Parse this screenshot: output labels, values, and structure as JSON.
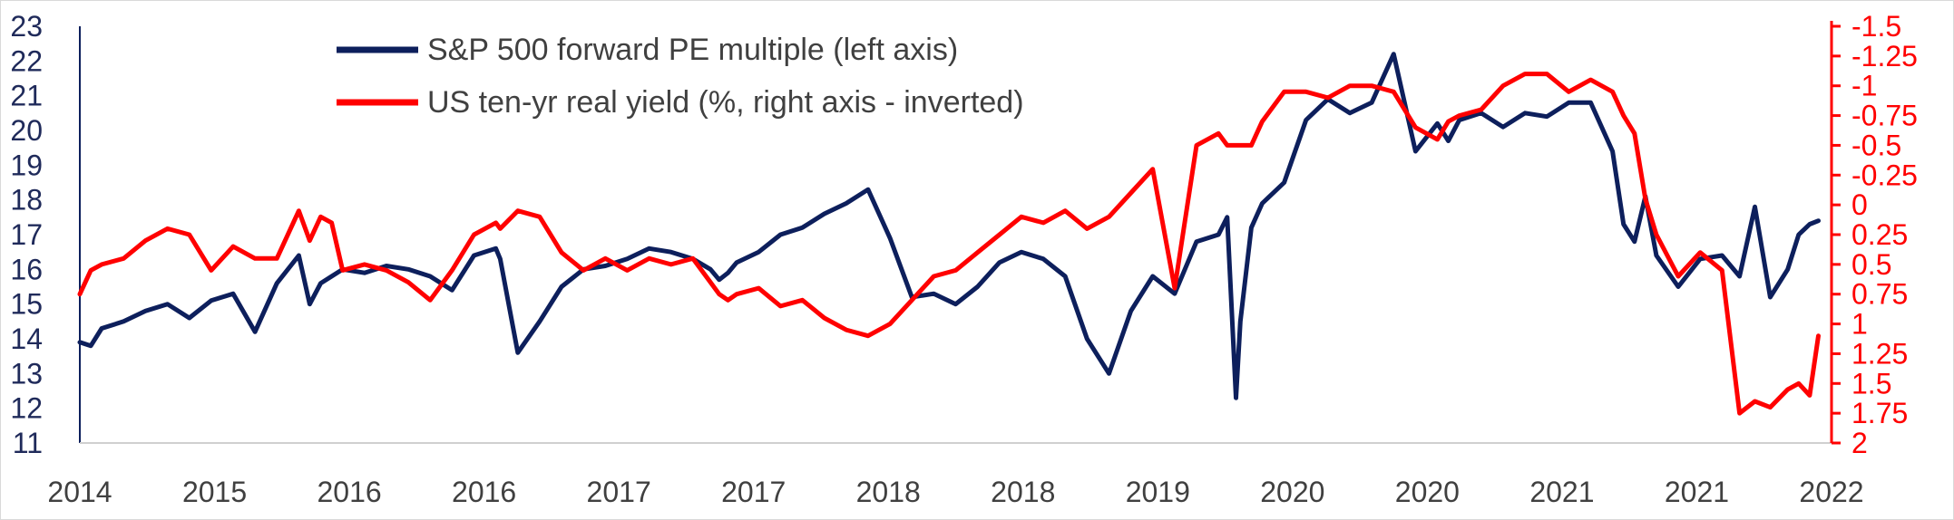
{
  "chart_data": {
    "type": "line",
    "title": "",
    "legend": {
      "placement": "top-left",
      "entries": [
        {
          "label": "S&P 500 forward PE multiple (left axis)",
          "color": "#0d1f5c"
        },
        {
          "label": "US ten-yr real yield (%, right axis - inverted)",
          "color": "#ff0000"
        }
      ]
    },
    "x_axis": {
      "range": [
        2014.0,
        2022.0
      ],
      "tick_labels": [
        "2014",
        "2015",
        "2016",
        "2016",
        "2017",
        "2017",
        "2018",
        "2018",
        "2019",
        "2020",
        "2020",
        "2021",
        "2021",
        "2022"
      ]
    },
    "y_left": {
      "range": [
        11,
        23
      ],
      "ticks": [
        "23",
        "22",
        "21",
        "20",
        "19",
        "18",
        "17",
        "16",
        "15",
        "14",
        "13",
        "12",
        "11"
      ],
      "color": "#1f2a5a"
    },
    "y_right": {
      "inverted": true,
      "range": [
        -1.5,
        2.0
      ],
      "ticks": [
        "-1.5",
        "-1.25",
        "-1",
        "-0.75",
        "-0.5",
        "-0.25",
        "0",
        "0.25",
        "0.5",
        "0.75",
        "1",
        "1.25",
        "1.5",
        "1.75",
        "2"
      ],
      "color": "#ff0000"
    },
    "grid": false,
    "series": [
      {
        "name": "S&P 500 forward PE multiple (left axis)",
        "axis": "left",
        "color": "#0d1f5c",
        "x": [
          2014.0,
          2014.05,
          2014.1,
          2014.2,
          2014.3,
          2014.4,
          2014.5,
          2014.6,
          2014.7,
          2014.8,
          2014.9,
          2015.0,
          2015.05,
          2015.1,
          2015.15,
          2015.2,
          2015.3,
          2015.4,
          2015.5,
          2015.6,
          2015.7,
          2015.8,
          2015.9,
          2015.92,
          2016.0,
          2016.1,
          2016.2,
          2016.3,
          2016.4,
          2016.5,
          2016.6,
          2016.7,
          2016.8,
          2016.88,
          2016.92,
          2016.96,
          2017.0,
          2017.1,
          2017.2,
          2017.3,
          2017.4,
          2017.5,
          2017.6,
          2017.7,
          2017.8,
          2017.9,
          2018.0,
          2018.1,
          2018.2,
          2018.3,
          2018.4,
          2018.5,
          2018.6,
          2018.7,
          2018.8,
          2018.9,
          2019.0,
          2019.1,
          2019.2,
          2019.24,
          2019.28,
          2019.3,
          2019.35,
          2019.4,
          2019.5,
          2019.6,
          2019.7,
          2019.8,
          2019.9,
          2020.0,
          2020.1,
          2020.2,
          2020.25,
          2020.3,
          2020.4,
          2020.5,
          2020.6,
          2020.7,
          2020.8,
          2020.9,
          2021.0,
          2021.05,
          2021.1,
          2021.15,
          2021.2,
          2021.3,
          2021.4,
          2021.5,
          2021.58,
          2021.65,
          2021.72,
          2021.8,
          2021.85,
          2021.9,
          2021.94
        ],
        "y": [
          13.9,
          13.8,
          14.3,
          14.5,
          14.8,
          15.0,
          14.6,
          15.1,
          15.3,
          14.2,
          15.6,
          16.4,
          15.0,
          15.6,
          15.8,
          16.0,
          15.9,
          16.1,
          16.0,
          15.8,
          15.4,
          16.4,
          16.6,
          16.3,
          13.6,
          14.5,
          15.5,
          16.0,
          16.1,
          16.3,
          16.6,
          16.5,
          16.3,
          16.0,
          15.7,
          15.9,
          16.2,
          16.5,
          17.0,
          17.2,
          17.6,
          17.9,
          18.3,
          16.9,
          15.2,
          15.3,
          15.0,
          15.5,
          16.2,
          16.5,
          16.3,
          15.8,
          14.0,
          13.0,
          14.8,
          15.8,
          15.3,
          16.8,
          17.0,
          17.5,
          12.3,
          14.5,
          17.2,
          17.9,
          18.5,
          20.3,
          20.9,
          20.5,
          20.8,
          22.2,
          19.4,
          20.2,
          19.7,
          20.3,
          20.5,
          20.1,
          20.5,
          20.4,
          20.8,
          20.8,
          19.4,
          17.3,
          16.8,
          18.1,
          16.4,
          15.5,
          16.3,
          16.4,
          15.8,
          17.8,
          15.2,
          16.0,
          17.0,
          17.3,
          17.4
        ]
      },
      {
        "name": "US ten-yr real yield (%, right axis - inverted)",
        "axis": "right",
        "color": "#ff0000",
        "x": [
          2014.0,
          2014.05,
          2014.1,
          2014.2,
          2014.3,
          2014.4,
          2014.5,
          2014.6,
          2014.7,
          2014.8,
          2014.9,
          2015.0,
          2015.05,
          2015.1,
          2015.15,
          2015.2,
          2015.3,
          2015.4,
          2015.5,
          2015.6,
          2015.7,
          2015.8,
          2015.9,
          2015.92,
          2016.0,
          2016.1,
          2016.2,
          2016.3,
          2016.4,
          2016.5,
          2016.6,
          2016.7,
          2016.8,
          2016.88,
          2016.92,
          2016.96,
          2017.0,
          2017.1,
          2017.2,
          2017.3,
          2017.4,
          2017.5,
          2017.6,
          2017.7,
          2017.8,
          2017.9,
          2018.0,
          2018.1,
          2018.2,
          2018.3,
          2018.4,
          2018.5,
          2018.6,
          2018.7,
          2018.8,
          2018.9,
          2019.0,
          2019.1,
          2019.2,
          2019.24,
          2019.28,
          2019.3,
          2019.35,
          2019.4,
          2019.5,
          2019.6,
          2019.7,
          2019.8,
          2019.9,
          2020.0,
          2020.1,
          2020.2,
          2020.25,
          2020.3,
          2020.4,
          2020.5,
          2020.6,
          2020.7,
          2020.8,
          2020.9,
          2021.0,
          2021.05,
          2021.1,
          2021.15,
          2021.2,
          2021.3,
          2021.4,
          2021.5,
          2021.58,
          2021.65,
          2021.72,
          2021.8,
          2021.85,
          2021.9,
          2021.94
        ],
        "y": [
          0.75,
          0.55,
          0.5,
          0.45,
          0.3,
          0.2,
          0.25,
          0.55,
          0.35,
          0.45,
          0.45,
          0.05,
          0.3,
          0.1,
          0.15,
          0.55,
          0.5,
          0.55,
          0.65,
          0.8,
          0.55,
          0.25,
          0.15,
          0.2,
          0.05,
          0.1,
          0.4,
          0.55,
          0.45,
          0.55,
          0.45,
          0.5,
          0.45,
          0.65,
          0.75,
          0.8,
          0.75,
          0.7,
          0.85,
          0.8,
          0.95,
          1.05,
          1.1,
          1.0,
          0.8,
          0.6,
          0.55,
          0.4,
          0.25,
          0.1,
          0.15,
          0.05,
          0.2,
          0.1,
          -0.1,
          -0.3,
          0.7,
          -0.5,
          -0.6,
          -0.5,
          -0.5,
          -0.5,
          -0.5,
          -0.7,
          -0.95,
          -0.95,
          -0.9,
          -1.0,
          -1.0,
          -0.95,
          -0.65,
          -0.55,
          -0.7,
          -0.75,
          -0.8,
          -1.0,
          -1.1,
          -1.1,
          -0.95,
          -1.05,
          -0.95,
          -0.75,
          -0.6,
          -0.05,
          0.25,
          0.6,
          0.4,
          0.55,
          1.75,
          1.65,
          1.7,
          1.55,
          1.5,
          1.6,
          1.1
        ]
      }
    ]
  }
}
